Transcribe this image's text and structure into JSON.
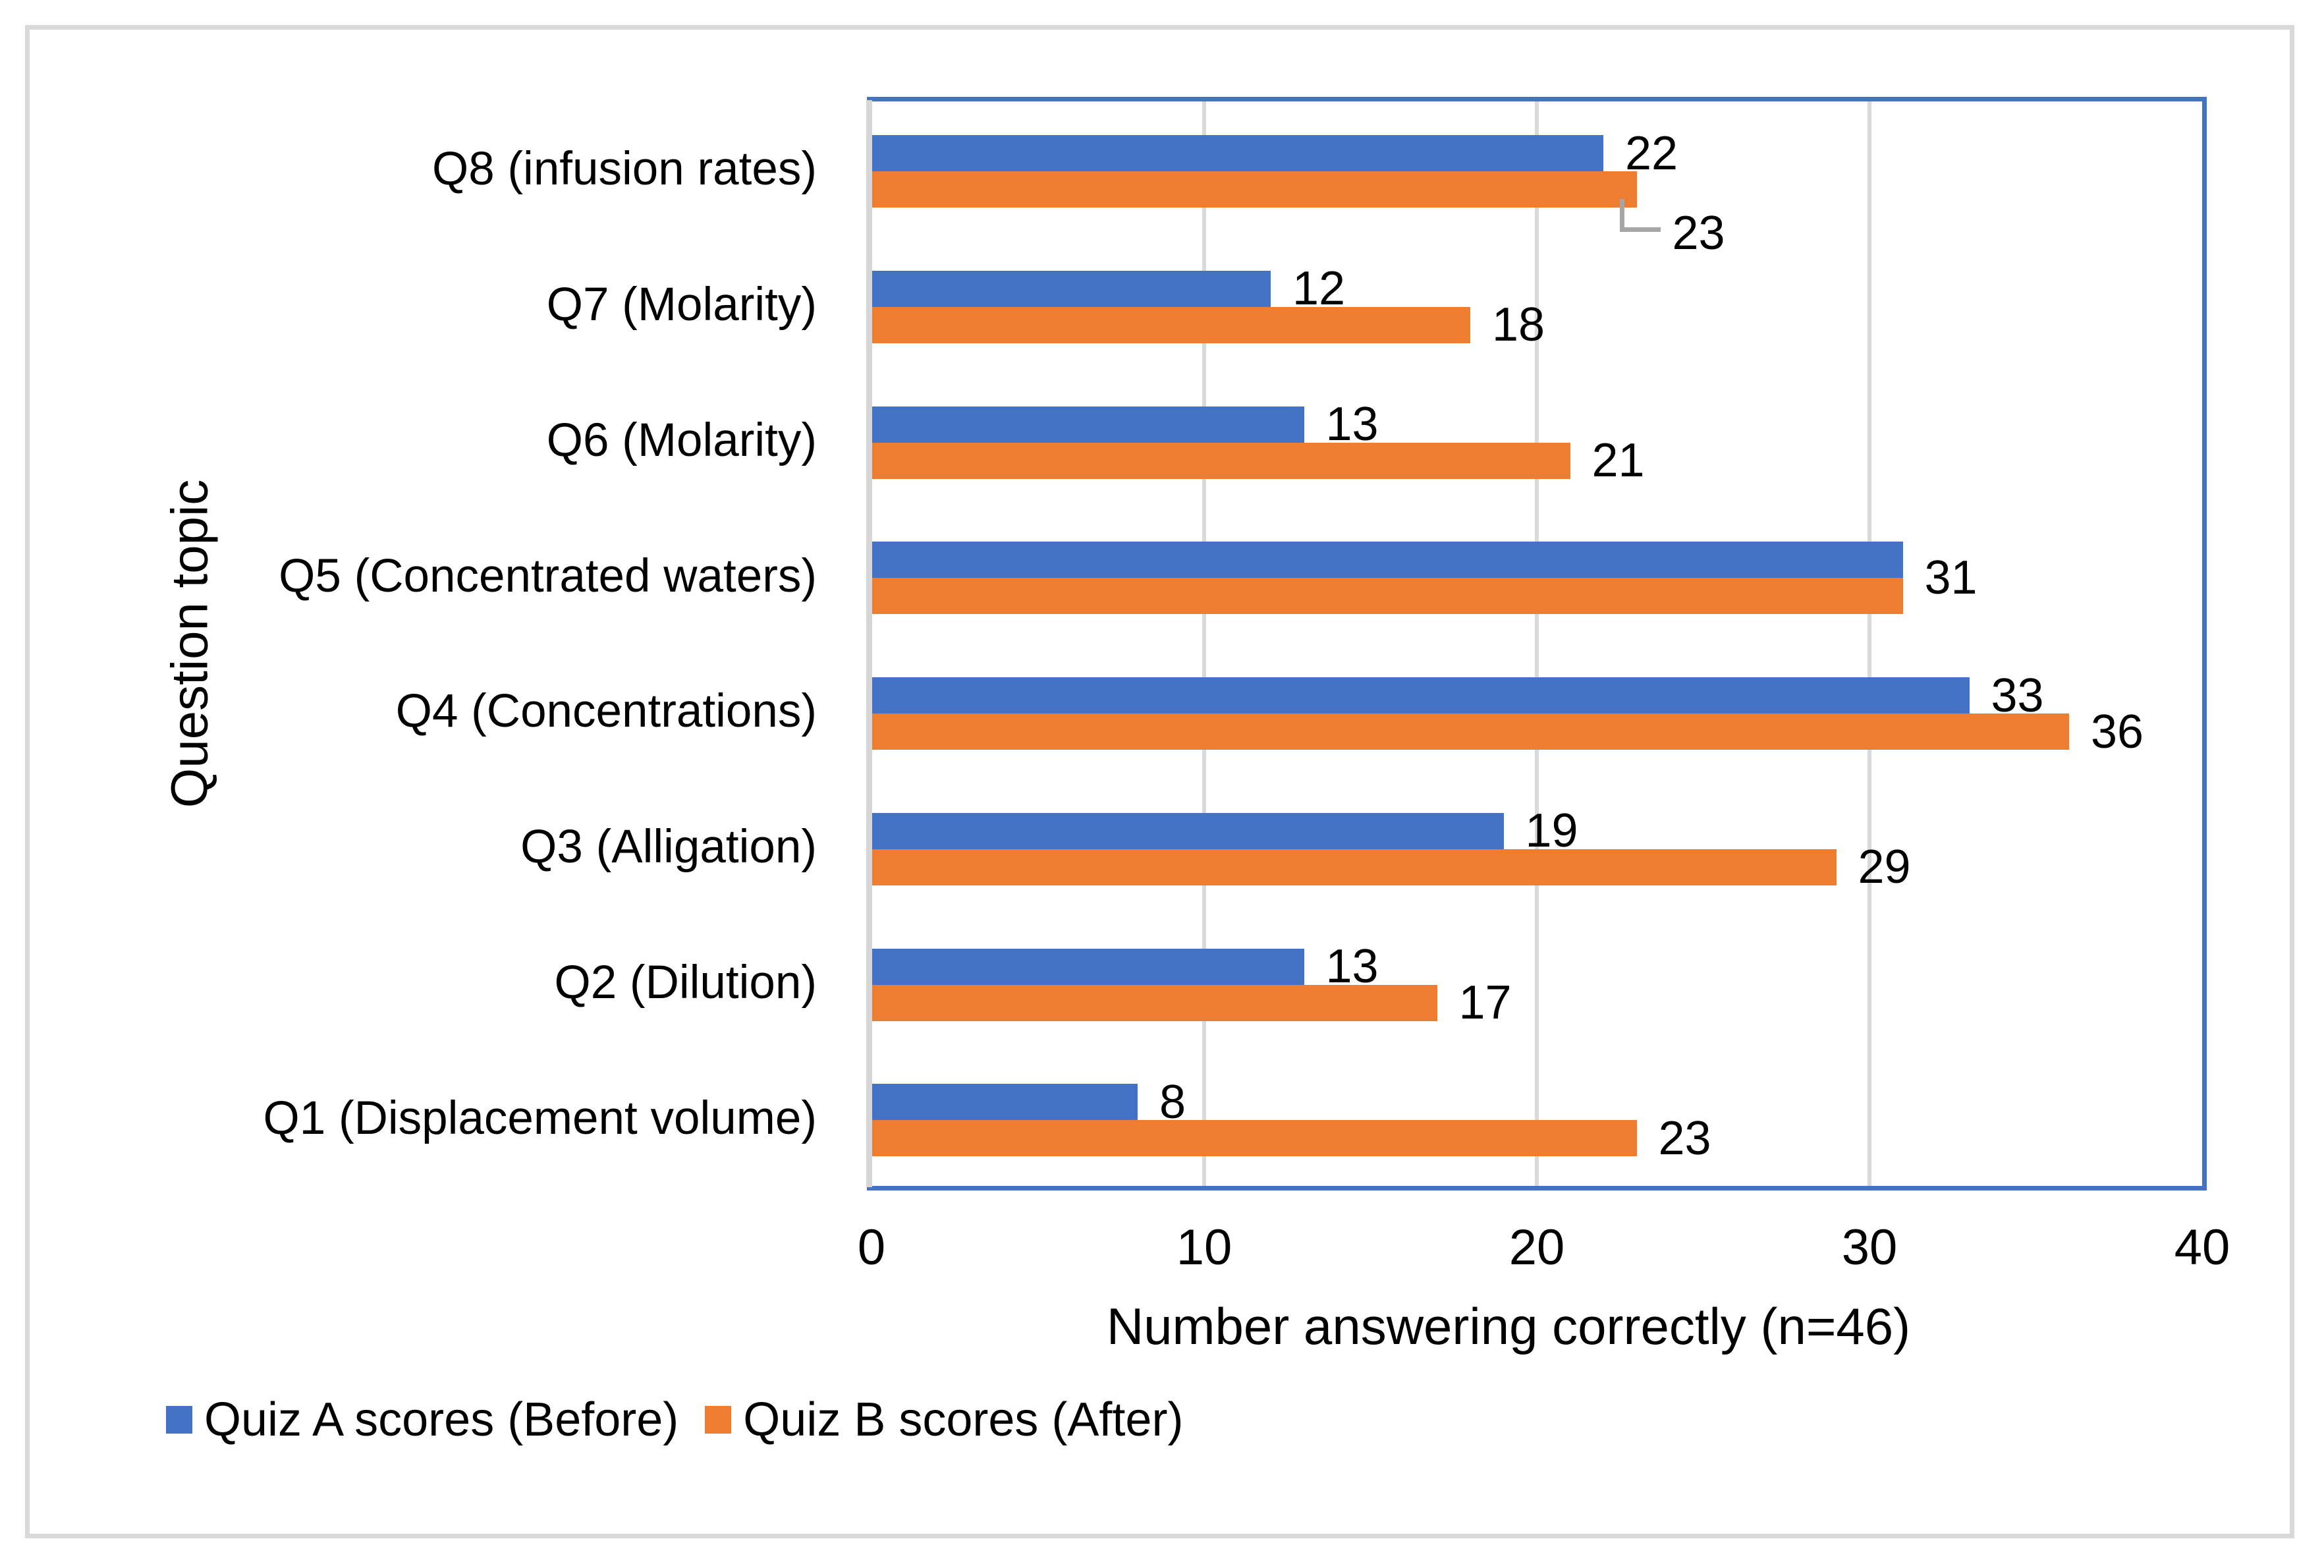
{
  "chart_data": {
    "type": "bar",
    "orientation": "horizontal",
    "xlabel": "Number answering correctly (n=46)",
    "ylabel": "Question topic",
    "xlim": [
      0,
      40
    ],
    "xticks": [
      0,
      10,
      20,
      30,
      40
    ],
    "grid": "vertical-major",
    "legend_position": "bottom-left",
    "data_labels": "outside-end",
    "series": [
      {
        "name": "Quiz A scores (Before)",
        "color": "#4472C4"
      },
      {
        "name": "Quiz B scores (After)",
        "color": "#ED7D31"
      }
    ],
    "rows_top_to_bottom": [
      {
        "category": "Q8 (infusion rates)",
        "quiz_a_before": 22,
        "quiz_b_after": 23,
        "after_label_leader_line": true
      },
      {
        "category": "Q7 (Molarity)",
        "quiz_a_before": 12,
        "quiz_b_after": 18
      },
      {
        "category": "Q6 (Molarity)",
        "quiz_a_before": 13,
        "quiz_b_after": 21
      },
      {
        "category": "Q5 (Concentrated waters)",
        "quiz_a_before": 31,
        "quiz_b_after": 31,
        "single_shared_label": true
      },
      {
        "category": "Q4 (Concentrations)",
        "quiz_a_before": 33,
        "quiz_b_after": 36
      },
      {
        "category": "Q3 (Alligation)",
        "quiz_a_before": 19,
        "quiz_b_after": 29
      },
      {
        "category": "Q2 (Dilution)",
        "quiz_a_before": 13,
        "quiz_b_after": 17
      },
      {
        "category": "Q1 (Displacement volume)",
        "quiz_a_before": 8,
        "quiz_b_after": 23
      }
    ]
  },
  "colors": {
    "series_a_blue": "#4472C4",
    "series_b_orange": "#ED7D31",
    "gridline_gray": "#D9D9D9",
    "axis_line_gray": "#D6D6D6",
    "plot_border_blue": "#4472C4",
    "leader_line_gray": "#A6A6A6",
    "outer_frame_gray": "#D9D9D9",
    "text_black": "#000000"
  }
}
